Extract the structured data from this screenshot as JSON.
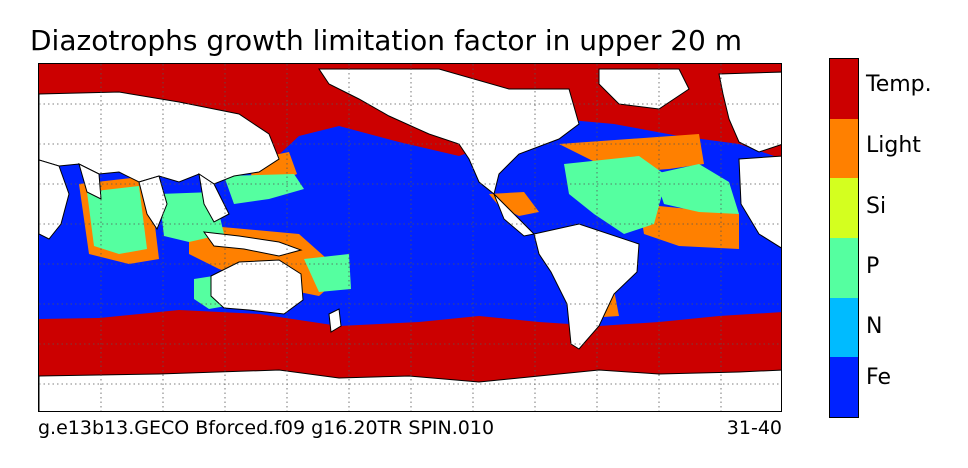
{
  "title": "Diazotrophs growth limitation factor in upper 20 m",
  "footer": {
    "run_id": "g.e13b13.GECO Bforced.f09 g16.20TR SPIN.010",
    "years": "31-40"
  },
  "legend": {
    "categories": [
      {
        "label": "Temp.",
        "color": "#cc0000"
      },
      {
        "label": "Light",
        "color": "#ff8000"
      },
      {
        "label": "Si",
        "color": "#d4ff1f"
      },
      {
        "label": "P",
        "color": "#55ffa0"
      },
      {
        "label": "N",
        "color": "#00bbff"
      },
      {
        "label": "Fe",
        "color": "#0022ff"
      }
    ]
  },
  "map": {
    "land_color": "#ffffff",
    "coastline_color": "#000000",
    "gridlines": "dotted"
  }
}
